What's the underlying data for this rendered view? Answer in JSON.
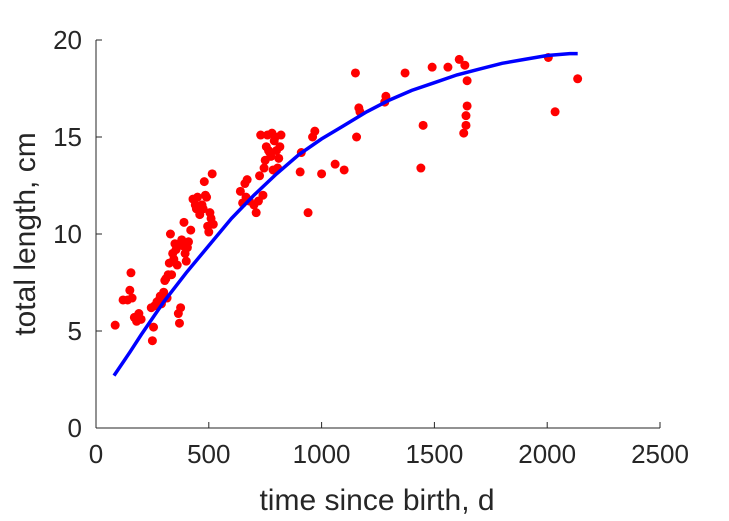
{
  "chart_data": {
    "type": "scatter",
    "title": "",
    "xlabel": "time since birth, d",
    "ylabel": "total length, cm",
    "xlim": [
      0,
      2500
    ],
    "ylim": [
      0,
      20
    ],
    "xticks": [
      0,
      500,
      1000,
      1500,
      2000,
      2500
    ],
    "yticks": [
      0,
      5,
      10,
      15,
      20
    ],
    "grid": false,
    "colors": {
      "points": "#ff0000",
      "fit": "#0000ff",
      "axes": "#262626"
    },
    "series": [
      {
        "kind": "points",
        "x": [
          85,
          120,
          140,
          150,
          155,
          160,
          170,
          180,
          190,
          200,
          245,
          250,
          255,
          260,
          270,
          280,
          285,
          290,
          295,
          300,
          305,
          310,
          315,
          320,
          325,
          330,
          335,
          340,
          345,
          350,
          355,
          360,
          365,
          370,
          375,
          380,
          385,
          390,
          395,
          400,
          405,
          410,
          420,
          430,
          440,
          445,
          450,
          460,
          470,
          475,
          480,
          485,
          490,
          495,
          500,
          505,
          510,
          515,
          520,
          640,
          650,
          660,
          665,
          670,
          680,
          700,
          710,
          720,
          725,
          730,
          740,
          745,
          750,
          755,
          760,
          765,
          770,
          775,
          780,
          785,
          790,
          795,
          800,
          805,
          810,
          815,
          820,
          905,
          910,
          940,
          960,
          970,
          1000,
          1060,
          1100,
          1150,
          1155,
          1165,
          1170,
          1280,
          1285,
          1370,
          1440,
          1450,
          1490,
          1560,
          1610,
          1630,
          1635,
          1640,
          1640,
          1645,
          1645,
          2005,
          2035,
          2135
        ],
        "y": [
          5.3,
          6.6,
          6.6,
          7.1,
          8.0,
          6.7,
          5.7,
          5.5,
          5.9,
          5.6,
          6.2,
          4.5,
          5.2,
          6.3,
          6.5,
          6.6,
          6.8,
          6.4,
          6.6,
          7.0,
          7.6,
          7.7,
          6.7,
          7.9,
          8.5,
          10.0,
          7.9,
          9.0,
          8.7,
          9.5,
          9.2,
          8.4,
          5.9,
          5.4,
          6.2,
          9.7,
          9.4,
          10.6,
          9.0,
          8.6,
          9.3,
          9.6,
          10.2,
          11.8,
          11.5,
          11.3,
          11.9,
          11.0,
          11.5,
          11.3,
          12.7,
          12.0,
          11.9,
          10.4,
          10.1,
          11.1,
          10.8,
          13.1,
          10.5,
          12.2,
          11.6,
          12.6,
          11.9,
          12.8,
          11.7,
          11.5,
          11.1,
          11.7,
          13.0,
          15.1,
          12.0,
          13.4,
          13.8,
          14.5,
          15.1,
          14.3,
          14.2,
          14.0,
          15.2,
          13.3,
          14.8,
          15.0,
          14.3,
          13.4,
          13.9,
          14.5,
          15.1,
          13.2,
          14.2,
          11.1,
          15.0,
          15.3,
          13.1,
          13.6,
          13.3,
          18.3,
          15.0,
          16.5,
          16.3,
          16.8,
          17.1,
          18.3,
          13.4,
          15.6,
          18.6,
          18.6,
          19.0,
          15.2,
          18.7,
          16.1,
          15.6,
          16.6,
          17.9,
          19.1,
          16.3,
          18.0
        ]
      },
      {
        "kind": "fit-curve",
        "x": [
          80,
          150,
          200,
          300,
          400,
          500,
          600,
          700,
          800,
          900,
          1000,
          1100,
          1200,
          1300,
          1400,
          1500,
          1600,
          1700,
          1800,
          1900,
          2000,
          2100,
          2135
        ],
        "y": [
          2.7,
          3.9,
          4.8,
          6.5,
          8.0,
          9.4,
          10.8,
          12.0,
          13.1,
          14.1,
          14.9,
          15.6,
          16.3,
          16.9,
          17.4,
          17.8,
          18.2,
          18.5,
          18.8,
          19.0,
          19.2,
          19.3,
          19.3
        ]
      }
    ]
  }
}
